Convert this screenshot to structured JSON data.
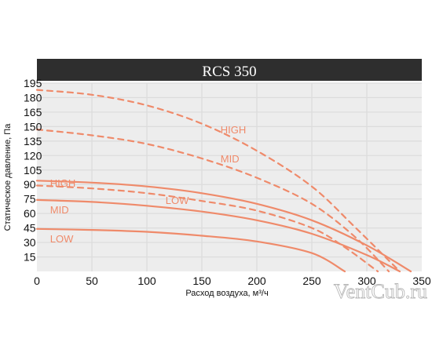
{
  "watermark": "VentCub.ru",
  "chart_data": {
    "type": "line",
    "title": "RCS 350",
    "xlabel": "Расход воздуха, м³/ч",
    "ylabel": "Статическое давление, Па",
    "xlim": [
      0,
      350
    ],
    "ylim": [
      0,
      195
    ],
    "x_ticks": [
      0,
      50,
      100,
      150,
      200,
      250,
      300,
      350
    ],
    "y_ticks": [
      15,
      30,
      45,
      60,
      75,
      90,
      105,
      120,
      135,
      150,
      165,
      180,
      195
    ],
    "grid": true,
    "colors": {
      "curve": "#ef8a6a",
      "title_bar": "#2e2e2e",
      "grid": "#dcdcdc",
      "plot_bg": "#ededed"
    },
    "series": [
      {
        "name": "HIGH",
        "style": "dashed",
        "x": [
          0,
          50,
          100,
          150,
          200,
          250,
          290,
          330
        ],
        "y": [
          188,
          183,
          172,
          153,
          125,
          88,
          45,
          0
        ]
      },
      {
        "name": "MID",
        "style": "dashed",
        "x": [
          0,
          50,
          100,
          150,
          200,
          250,
          290,
          320
        ],
        "y": [
          147,
          141,
          132,
          117,
          97,
          70,
          35,
          0
        ]
      },
      {
        "name": "LOW",
        "style": "dashed",
        "x": [
          0,
          50,
          100,
          150,
          200,
          250,
          280,
          310
        ],
        "y": [
          89,
          86,
          81,
          73,
          63,
          45,
          25,
          0
        ]
      },
      {
        "name": "HIGH",
        "style": "solid",
        "x": [
          0,
          50,
          100,
          150,
          200,
          250,
          300,
          340
        ],
        "y": [
          94,
          92,
          88,
          81,
          70,
          53,
          27,
          0
        ]
      },
      {
        "name": "MID",
        "style": "solid",
        "x": [
          0,
          50,
          100,
          150,
          200,
          250,
          300,
          330
        ],
        "y": [
          74,
          72,
          68,
          62,
          53,
          39,
          17,
          0
        ]
      },
      {
        "name": "LOW",
        "style": "solid",
        "x": [
          0,
          50,
          100,
          150,
          200,
          250,
          280
        ],
        "y": [
          44,
          43,
          41,
          37,
          31,
          19,
          0
        ]
      }
    ],
    "annotations": [
      {
        "text": "HIGH",
        "x": 167,
        "y": 147
      },
      {
        "text": "MID",
        "x": 167,
        "y": 117
      },
      {
        "text": "LOW",
        "x": 117,
        "y": 74
      },
      {
        "text": "HIGH",
        "x": 12,
        "y": 92
      },
      {
        "text": "MID",
        "x": 12,
        "y": 64
      },
      {
        "text": "LOW",
        "x": 12,
        "y": 34
      }
    ]
  }
}
